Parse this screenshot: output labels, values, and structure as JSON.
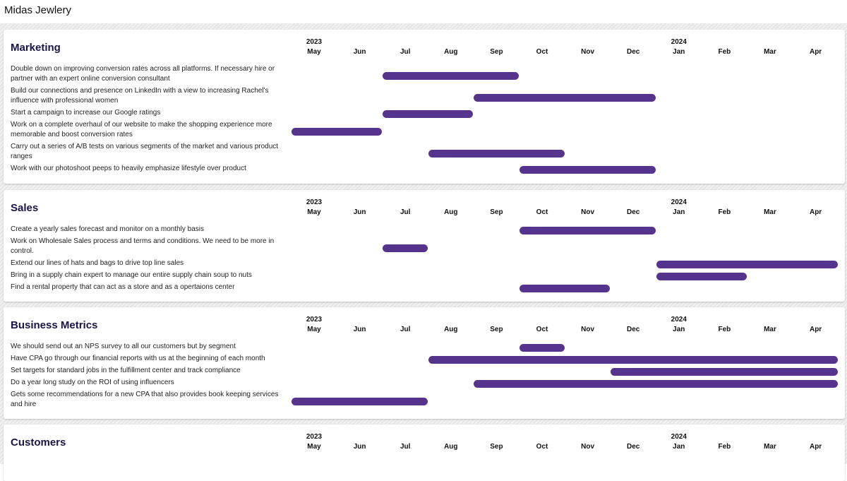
{
  "app": {
    "title": "Midas Jewlery"
  },
  "timeline": {
    "years": [
      {
        "label": "2023",
        "month_index": 0
      },
      {
        "label": "2024",
        "month_index": 8
      }
    ],
    "months": [
      "May",
      "Jun",
      "Jul",
      "Aug",
      "Sep",
      "Oct",
      "Nov",
      "Dec",
      "Jan",
      "Feb",
      "Mar",
      "Apr"
    ]
  },
  "sections": [
    {
      "title": "Marketing",
      "tasks": [
        {
          "text": "Double down on improving conversion rates across all platforms. If necessary hire or partner with an expert online conversion consultant",
          "start": 2,
          "end": 5
        },
        {
          "text": "Build our connections and presence on LinkedIn with a view to increasing Rachel's influence with professional women",
          "start": 4,
          "end": 8
        },
        {
          "text": "Start a campaign to increase our Google ratings",
          "start": 2,
          "end": 4
        },
        {
          "text": "Work on a complete overhaul of our website to make the shopping experience more memorable and boost conversion rates",
          "start": 0,
          "end": 2
        },
        {
          "text": "Carry out a series of A/B tests on various segments of the market and various product ranges",
          "start": 3,
          "end": 6
        },
        {
          "text": "Work with our photoshoot peeps to heavily emphasize lifestyle over product",
          "start": 5,
          "end": 8
        }
      ]
    },
    {
      "title": "Sales",
      "tasks": [
        {
          "text": "Create a yearly sales forecast and monitor on a monthly basis",
          "start": 5,
          "end": 8
        },
        {
          "text": "Work on Wholesale Sales process and terms and conditions. We need to be more in control.",
          "start": 2,
          "end": 3
        },
        {
          "text": "Extend our lines of hats and bags to drive top line sales",
          "start": 8,
          "end": 12
        },
        {
          "text": "Bring in a supply chain expert to manage our entire supply chain soup to nuts",
          "start": 8,
          "end": 10
        },
        {
          "text": "Find a rental property that can act as a store and as a opertaions center",
          "start": 5,
          "end": 7
        }
      ]
    },
    {
      "title": "Business Metrics",
      "tasks": [
        {
          "text": "We should send out an NPS survey to all our customers but by segment",
          "start": 5,
          "end": 6
        },
        {
          "text": "Have CPA go through our financial reports with us at the beginning of each month",
          "start": 3,
          "end": 12
        },
        {
          "text": "Set targets for standard jobs in the fulfillment center and track compliance",
          "start": 7,
          "end": 12
        },
        {
          "text": "Do a year long study on the ROI of using influencers",
          "start": 4,
          "end": 12
        },
        {
          "text": "Gets some recommendations for a new CPA that also provides book keeping services and hire",
          "start": 0,
          "end": 3
        }
      ]
    },
    {
      "title": "Customers",
      "tasks": []
    }
  ]
}
